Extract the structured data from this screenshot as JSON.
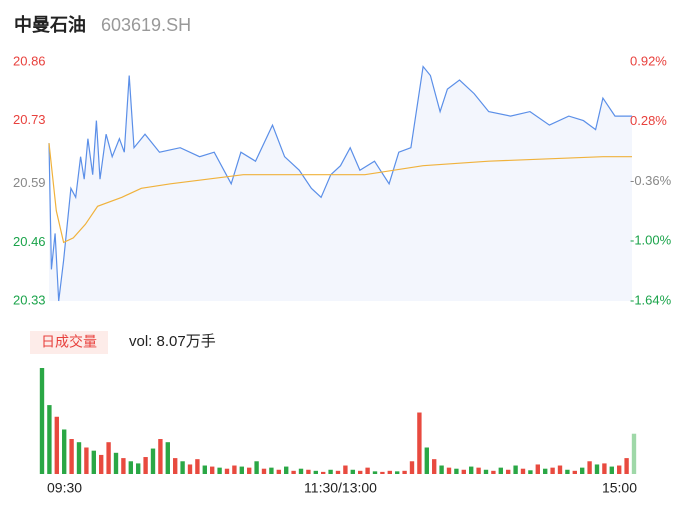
{
  "header": {
    "title": "中曼石油",
    "code": "603619.SH"
  },
  "chart_data": [
    {
      "type": "line",
      "xlim": [
        0,
        240
      ],
      "xticks": [
        {
          "value": 0,
          "label": "09:30"
        },
        {
          "value": 120,
          "label": "11:30/13:00"
        },
        {
          "value": 240,
          "label": "15:00"
        }
      ],
      "ylim": [
        20.33,
        20.86
      ],
      "yticks": [
        20.86,
        20.73,
        20.59,
        20.46,
        20.33
      ],
      "ytick_colors": [
        "#e8413d",
        "#e8413d",
        "#888888",
        "#1aa34a",
        "#1aa34a"
      ],
      "y2lim": [
        -1.64,
        0.92
      ],
      "y2ticks": [
        {
          "value": 0.92,
          "label": "0.92%"
        },
        {
          "value": 0.28,
          "label": "0.28%"
        },
        {
          "value": -0.36,
          "label": "-0.36%"
        },
        {
          "value": -1.0,
          "label": "-1.00%"
        },
        {
          "value": -1.64,
          "label": "-1.64%"
        }
      ],
      "series": [
        {
          "color": "#5b8fe8",
          "area": "#f3f6fd",
          "x": [
            0,
            1,
            2.5,
            4,
            6,
            9,
            11,
            13,
            14.5,
            16,
            18,
            19.5,
            21,
            23.5,
            26,
            29,
            31,
            33,
            35,
            39.5,
            45.5,
            54,
            62,
            68,
            75,
            79,
            85,
            92,
            97,
            103,
            108,
            112,
            116,
            120,
            124,
            128,
            134,
            140,
            144,
            149,
            154,
            157,
            161,
            164,
            169,
            175,
            181,
            190,
            198,
            206,
            214,
            220,
            225,
            228,
            233,
            240
          ],
          "values": [
            20.68,
            20.4,
            20.48,
            20.33,
            20.42,
            20.58,
            20.56,
            20.65,
            20.6,
            20.69,
            20.61,
            20.73,
            20.6,
            20.7,
            20.65,
            20.69,
            20.66,
            20.83,
            20.67,
            20.7,
            20.66,
            20.67,
            20.65,
            20.66,
            20.59,
            20.66,
            20.64,
            20.72,
            20.65,
            20.62,
            20.58,
            20.56,
            20.61,
            20.63,
            20.67,
            20.62,
            20.64,
            20.59,
            20.66,
            20.67,
            20.85,
            20.83,
            20.75,
            20.8,
            20.82,
            20.79,
            20.75,
            20.74,
            20.75,
            20.72,
            20.74,
            20.73,
            20.71,
            20.78,
            20.74,
            20.74
          ]
        },
        {
          "color": "#f0b23c",
          "x": [
            0,
            3,
            6,
            10,
            15,
            20,
            30,
            38,
            50,
            80,
            130,
            154,
            181,
            228,
            240
          ],
          "values": [
            20.68,
            20.53,
            20.46,
            20.47,
            20.5,
            20.54,
            20.56,
            20.58,
            20.59,
            20.61,
            20.61,
            20.63,
            20.64,
            20.65,
            20.65
          ]
        }
      ]
    },
    {
      "type": "bar",
      "label": "日成交量",
      "volume_label": "vol: 8.07万手",
      "xlim": [
        0,
        240
      ],
      "ylim": [
        0,
        1000
      ],
      "x": [
        0,
        3,
        6,
        9,
        12,
        15,
        18,
        21,
        24,
        27,
        30,
        33,
        36,
        39,
        42,
        45,
        48,
        51,
        54,
        57,
        60,
        63,
        66,
        69,
        72,
        75,
        78,
        81,
        84,
        87,
        90,
        93,
        96,
        99,
        102,
        105,
        108,
        111,
        114,
        117,
        120,
        123,
        126,
        129,
        132,
        135,
        138,
        141,
        144,
        147,
        150,
        153,
        156,
        159,
        162,
        165,
        168,
        171,
        174,
        177,
        180,
        183,
        186,
        189,
        192,
        195,
        198,
        201,
        204,
        207,
        210,
        213,
        216,
        219,
        222,
        225,
        228,
        231,
        234,
        237,
        240
      ],
      "values": [
        1000,
        650,
        540,
        420,
        330,
        300,
        250,
        220,
        180,
        300,
        200,
        150,
        120,
        100,
        160,
        240,
        330,
        300,
        150,
        120,
        90,
        140,
        80,
        70,
        60,
        50,
        80,
        70,
        60,
        120,
        50,
        60,
        40,
        70,
        30,
        50,
        40,
        30,
        20,
        40,
        30,
        80,
        40,
        30,
        60,
        25,
        20,
        30,
        25,
        30,
        120,
        580,
        250,
        140,
        80,
        60,
        50,
        40,
        70,
        60,
        40,
        30,
        60,
        40,
        80,
        50,
        35,
        90,
        50,
        60,
        80,
        40,
        30,
        60,
        120,
        90,
        100,
        70,
        80,
        150,
        380
      ],
      "colors": [
        "#2aa745",
        "#2aa745",
        "#e84a3f",
        "#2aa745",
        "#e84a3f",
        "#2aa745",
        "#e84a3f",
        "#2aa745",
        "#e84a3f",
        "#e84a3f",
        "#2aa745",
        "#e84a3f",
        "#2aa745",
        "#2aa745",
        "#e84a3f",
        "#2aa745",
        "#e84a3f",
        "#2aa745",
        "#e84a3f",
        "#2aa745",
        "#e84a3f",
        "#e84a3f",
        "#2aa745",
        "#e84a3f",
        "#2aa745",
        "#e84a3f",
        "#e84a3f",
        "#2aa745",
        "#e84a3f",
        "#2aa745",
        "#e84a3f",
        "#2aa745",
        "#e84a3f",
        "#2aa745",
        "#e84a3f",
        "#2aa745",
        "#e84a3f",
        "#2aa745",
        "#e84a3f",
        "#2aa745",
        "#e84a3f",
        "#e84a3f",
        "#2aa745",
        "#e84a3f",
        "#e84a3f",
        "#2aa745",
        "#e84a3f",
        "#e84a3f",
        "#2aa745",
        "#e84a3f",
        "#e84a3f",
        "#e84a3f",
        "#2aa745",
        "#e84a3f",
        "#2aa745",
        "#e84a3f",
        "#2aa745",
        "#e84a3f",
        "#2aa745",
        "#e84a3f",
        "#2aa745",
        "#e84a3f",
        "#2aa745",
        "#e84a3f",
        "#2aa745",
        "#e84a3f",
        "#2aa745",
        "#e84a3f",
        "#2aa745",
        "#e84a3f",
        "#e84a3f",
        "#2aa745",
        "#e84a3f",
        "#2aa745",
        "#e84a3f",
        "#2aa745",
        "#e84a3f",
        "#2aa745",
        "#e84a3f",
        "#e84a3f",
        "#9fd8a8"
      ]
    }
  ]
}
